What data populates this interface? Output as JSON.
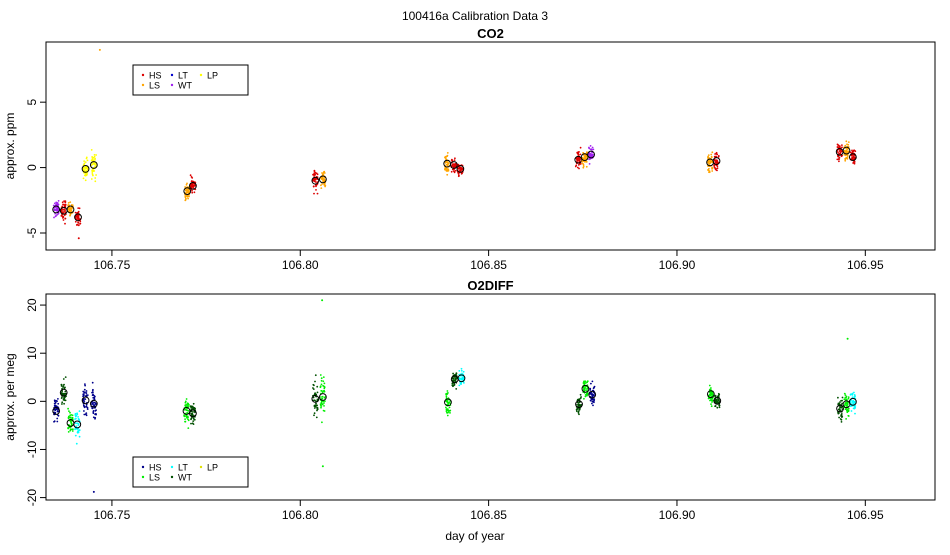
{
  "figure_title": "100416a   Calibration Data 3",
  "x_axis_label": "day of year",
  "legend_labels": [
    "HS",
    "LS",
    "LT",
    "WT",
    "LP"
  ],
  "colors": {
    "co2": {
      "HS": "#dd0000",
      "LS": "#ffa500",
      "LT": "#0000cc",
      "WT": "#a020f0",
      "LP": "#ffff00"
    },
    "o2": {
      "HS": "#00008b",
      "LS": "#00ee00",
      "LT": "#00ffff",
      "WT": "#005000",
      "LP": "#e0e000"
    }
  },
  "chart_data": [
    {
      "type": "scatter",
      "title": "CO2",
      "ylabel": "approx. ppm",
      "xlabel": "",
      "xlim": [
        106.7325,
        106.9685
      ],
      "ylim": [
        -6.3,
        9.6
      ],
      "x_ticks": [
        106.75,
        106.8,
        106.85,
        106.9,
        106.95
      ],
      "x_tick_labels": [
        "106.75",
        "106.80",
        "106.85",
        "106.90",
        "106.95"
      ],
      "y_ticks": [
        -5,
        0,
        5
      ],
      "y_tick_labels": [
        "-5",
        "0",
        "5"
      ],
      "legend_position": "top-left",
      "clusters": [
        {
          "gas": "WT",
          "x": 106.7352,
          "mean": -3.2,
          "spread": 0.6
        },
        {
          "gas": "HS",
          "x": 106.7372,
          "mean": -3.3,
          "spread": 0.9
        },
        {
          "gas": "LS",
          "x": 106.739,
          "mean": -3.2,
          "spread": 0.6
        },
        {
          "gas": "HS",
          "x": 106.741,
          "mean": -3.8,
          "spread": 0.9
        },
        {
          "gas": "LP",
          "x": 106.743,
          "mean": -0.1,
          "spread": 1.0
        },
        {
          "gas": "LP",
          "x": 106.7452,
          "mean": 0.2,
          "spread": 1.0
        },
        {
          "gas": "LS",
          "x": 106.77,
          "mean": -1.8,
          "spread": 0.6
        },
        {
          "gas": "HS",
          "x": 106.7715,
          "mean": -1.4,
          "spread": 0.6
        },
        {
          "gas": "HS",
          "x": 106.804,
          "mean": -1.0,
          "spread": 0.8
        },
        {
          "gas": "LS",
          "x": 106.806,
          "mean": -0.9,
          "spread": 0.7
        },
        {
          "gas": "LS",
          "x": 106.839,
          "mean": 0.3,
          "spread": 0.7
        },
        {
          "gas": "HS",
          "x": 106.8408,
          "mean": 0.2,
          "spread": 0.6
        },
        {
          "gas": "HS",
          "x": 106.8425,
          "mean": -0.1,
          "spread": 0.6
        },
        {
          "gas": "HS",
          "x": 106.8738,
          "mean": 0.6,
          "spread": 0.7
        },
        {
          "gas": "LS",
          "x": 106.8755,
          "mean": 0.8,
          "spread": 0.7
        },
        {
          "gas": "WT",
          "x": 106.8772,
          "mean": 1.0,
          "spread": 0.7
        },
        {
          "gas": "LS",
          "x": 106.9088,
          "mean": 0.4,
          "spread": 0.8
        },
        {
          "gas": "HS",
          "x": 106.9105,
          "mean": 0.5,
          "spread": 0.7
        },
        {
          "gas": "HS",
          "x": 106.9432,
          "mean": 1.2,
          "spread": 0.8
        },
        {
          "gas": "LS",
          "x": 106.945,
          "mean": 1.3,
          "spread": 0.8
        },
        {
          "gas": "HS",
          "x": 106.9467,
          "mean": 0.8,
          "spread": 0.7
        }
      ],
      "outliers": [
        {
          "gas": "LS",
          "x": 106.7468,
          "y": 9.0
        },
        {
          "gas": "HS",
          "x": 106.7412,
          "y": -5.4
        }
      ]
    },
    {
      "type": "scatter",
      "title": "O2DIFF",
      "ylabel": "approx. per meg",
      "xlabel": "day of year",
      "xlim": [
        106.7325,
        106.9685
      ],
      "ylim": [
        -20.5,
        22.3
      ],
      "x_ticks": [
        106.75,
        106.8,
        106.85,
        106.9,
        106.95
      ],
      "x_tick_labels": [
        "106.75",
        "106.80",
        "106.85",
        "106.90",
        "106.95"
      ],
      "y_ticks": [
        -20,
        -10,
        0,
        10,
        20
      ],
      "y_tick_labels": [
        "-20",
        "-10",
        "0",
        "10",
        "20"
      ],
      "legend_position": "bottom-left",
      "clusters": [
        {
          "gas": "HS",
          "x": 106.7352,
          "mean": -2.0,
          "spread": 2.8
        },
        {
          "gas": "WT",
          "x": 106.7372,
          "mean": 1.8,
          "spread": 2.4
        },
        {
          "gas": "LS",
          "x": 106.739,
          "mean": -4.5,
          "spread": 2.8
        },
        {
          "gas": "LT",
          "x": 106.7408,
          "mean": -4.8,
          "spread": 2.8
        },
        {
          "gas": "HS",
          "x": 106.743,
          "mean": 0.2,
          "spread": 3.2
        },
        {
          "gas": "HS",
          "x": 106.7452,
          "mean": -0.5,
          "spread": 3.4
        },
        {
          "gas": "LS",
          "x": 106.7698,
          "mean": -2.0,
          "spread": 3.0
        },
        {
          "gas": "WT",
          "x": 106.7715,
          "mean": -2.5,
          "spread": 2.4
        },
        {
          "gas": "WT",
          "x": 106.804,
          "mean": 0.5,
          "spread": 4.0
        },
        {
          "gas": "LS",
          "x": 106.806,
          "mean": 0.9,
          "spread": 5.5
        },
        {
          "gas": "LS",
          "x": 106.8392,
          "mean": -0.2,
          "spread": 3.0
        },
        {
          "gas": "WT",
          "x": 106.841,
          "mean": 4.6,
          "spread": 1.8
        },
        {
          "gas": "LT",
          "x": 106.8428,
          "mean": 4.8,
          "spread": 1.8
        },
        {
          "gas": "WT",
          "x": 106.874,
          "mean": -0.6,
          "spread": 2.0
        },
        {
          "gas": "LS",
          "x": 106.8757,
          "mean": 2.6,
          "spread": 2.4
        },
        {
          "gas": "HS",
          "x": 106.8775,
          "mean": 1.4,
          "spread": 2.4
        },
        {
          "gas": "LS",
          "x": 106.909,
          "mean": 1.5,
          "spread": 2.0
        },
        {
          "gas": "WT",
          "x": 106.9107,
          "mean": 0.1,
          "spread": 1.6
        },
        {
          "gas": "WT",
          "x": 106.9433,
          "mean": -1.5,
          "spread": 2.6
        },
        {
          "gas": "LS",
          "x": 106.945,
          "mean": -0.6,
          "spread": 2.8
        },
        {
          "gas": "LT",
          "x": 106.9467,
          "mean": -0.1,
          "spread": 1.8
        }
      ],
      "outliers": [
        {
          "gas": "LS",
          "x": 106.8058,
          "y": 21.0
        },
        {
          "gas": "HS",
          "x": 106.7452,
          "y": -18.8
        },
        {
          "gas": "LS",
          "x": 106.806,
          "y": -13.5
        },
        {
          "gas": "LS",
          "x": 106.9453,
          "y": 13.0
        }
      ]
    }
  ]
}
